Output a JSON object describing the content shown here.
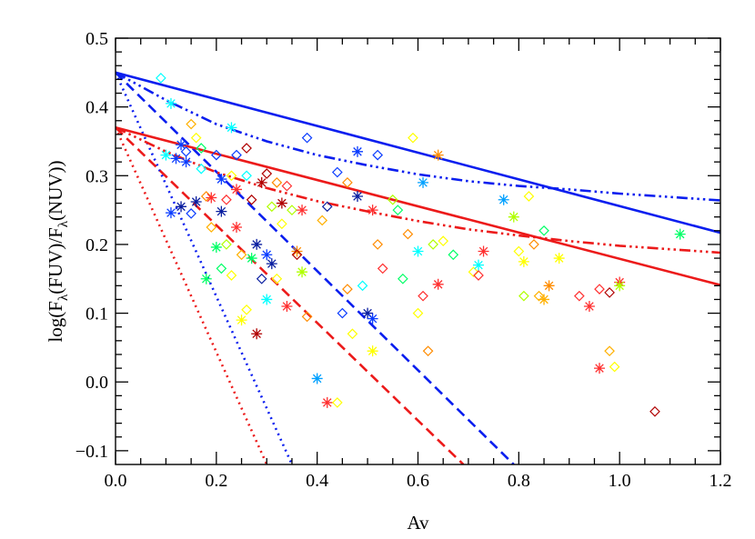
{
  "chart_data": {
    "type": "scatter",
    "xlabel": "Av",
    "ylabel": "log(Fλ(FUV)/Fλ(NUV))",
    "ylabel_parts": [
      "log(F",
      "λ",
      "(FUV)/F",
      "λ",
      "(NUV))"
    ],
    "xlim": [
      0.0,
      1.2
    ],
    "ylim": [
      -0.12,
      0.5
    ],
    "xticks": [
      0.0,
      0.2,
      0.4,
      0.6,
      0.8,
      1.0,
      1.2
    ],
    "xtick_labels": [
      "0.0",
      "0.2",
      "0.4",
      "0.6",
      "0.8",
      "1.0",
      "1.2"
    ],
    "yticks": [
      -0.1,
      0.0,
      0.1,
      0.2,
      0.3,
      0.4,
      0.5
    ],
    "ytick_labels": [
      "−0.1",
      "0.0",
      "0.1",
      "0.2",
      "0.3",
      "0.4",
      "0.5"
    ],
    "grid": false,
    "colors": {
      "blue": "#0a1eef",
      "red": "#ec1a1a"
    },
    "lines": [
      {
        "color": "blue",
        "style": "solid",
        "x": [
          0.0,
          1.2
        ],
        "y": [
          0.45,
          0.217
        ]
      },
      {
        "color": "blue",
        "style": "dashdotdot",
        "x": [
          0.0,
          0.1,
          0.2,
          0.3,
          0.4,
          0.5,
          0.6,
          0.7,
          0.8,
          0.9,
          1.0,
          1.1,
          1.2
        ],
        "y": [
          0.45,
          0.41,
          0.375,
          0.35,
          0.33,
          0.315,
          0.302,
          0.292,
          0.285,
          0.28,
          0.274,
          0.269,
          0.264
        ]
      },
      {
        "color": "blue",
        "style": "dashed",
        "x": [
          0.0,
          0.79
        ],
        "y": [
          0.45,
          -0.12
        ]
      },
      {
        "color": "blue",
        "style": "dotted",
        "x": [
          0.0,
          0.35
        ],
        "y": [
          0.45,
          -0.12
        ]
      },
      {
        "color": "red",
        "style": "solid",
        "x": [
          0.0,
          1.2
        ],
        "y": [
          0.37,
          0.141
        ]
      },
      {
        "color": "red",
        "style": "dashdotdot",
        "x": [
          0.0,
          0.1,
          0.2,
          0.3,
          0.4,
          0.5,
          0.6,
          0.7,
          0.8,
          0.9,
          1.0,
          1.1,
          1.2
        ],
        "y": [
          0.37,
          0.335,
          0.305,
          0.282,
          0.263,
          0.248,
          0.234,
          0.222,
          0.213,
          0.205,
          0.198,
          0.193,
          0.188
        ]
      },
      {
        "color": "red",
        "style": "dashed",
        "x": [
          0.0,
          0.69
        ],
        "y": [
          0.37,
          -0.12
        ]
      },
      {
        "color": "red",
        "style": "dotted",
        "x": [
          0.0,
          0.3
        ],
        "y": [
          0.37,
          -0.12
        ]
      }
    ],
    "points": [
      {
        "x": 0.09,
        "y": 0.442,
        "m": "d",
        "c": "#00ffff"
      },
      {
        "x": 0.1,
        "y": 0.33,
        "m": "s",
        "c": "#00ffff"
      },
      {
        "x": 0.11,
        "y": 0.246,
        "m": "s",
        "c": "#0a3cff"
      },
      {
        "x": 0.11,
        "y": 0.405,
        "m": "s",
        "c": "#00ffff"
      },
      {
        "x": 0.12,
        "y": 0.325,
        "m": "s",
        "c": "#0a3cff"
      },
      {
        "x": 0.13,
        "y": 0.345,
        "m": "s",
        "c": "#0a3cff"
      },
      {
        "x": 0.13,
        "y": 0.255,
        "m": "s",
        "c": "#0a1ea0"
      },
      {
        "x": 0.14,
        "y": 0.32,
        "m": "s",
        "c": "#0a3cff"
      },
      {
        "x": 0.14,
        "y": 0.335,
        "m": "d",
        "c": "#0a3cff"
      },
      {
        "x": 0.15,
        "y": 0.245,
        "m": "d",
        "c": "#0a3cff"
      },
      {
        "x": 0.15,
        "y": 0.375,
        "m": "d",
        "c": "#ffb000"
      },
      {
        "x": 0.16,
        "y": 0.355,
        "m": "d",
        "c": "#ffff00"
      },
      {
        "x": 0.16,
        "y": 0.262,
        "m": "s",
        "c": "#0a1ea0"
      },
      {
        "x": 0.17,
        "y": 0.34,
        "m": "d",
        "c": "#00ff66"
      },
      {
        "x": 0.17,
        "y": 0.31,
        "m": "d",
        "c": "#00ffff"
      },
      {
        "x": 0.18,
        "y": 0.27,
        "m": "d",
        "c": "#ff8c00"
      },
      {
        "x": 0.18,
        "y": 0.15,
        "m": "s",
        "c": "#00ff66"
      },
      {
        "x": 0.19,
        "y": 0.268,
        "m": "s",
        "c": "#ff3030"
      },
      {
        "x": 0.19,
        "y": 0.225,
        "m": "d",
        "c": "#ffb000"
      },
      {
        "x": 0.2,
        "y": 0.33,
        "m": "d",
        "c": "#0a3cff"
      },
      {
        "x": 0.2,
        "y": 0.196,
        "m": "s",
        "c": "#00ff66"
      },
      {
        "x": 0.21,
        "y": 0.295,
        "m": "s",
        "c": "#0a3cff"
      },
      {
        "x": 0.21,
        "y": 0.248,
        "m": "s",
        "c": "#0a1ea0"
      },
      {
        "x": 0.21,
        "y": 0.165,
        "m": "d",
        "c": "#00ff66"
      },
      {
        "x": 0.22,
        "y": 0.265,
        "m": "d",
        "c": "#ff3030"
      },
      {
        "x": 0.22,
        "y": 0.2,
        "m": "d",
        "c": "#b0ff00"
      },
      {
        "x": 0.23,
        "y": 0.37,
        "m": "s",
        "c": "#00ffff"
      },
      {
        "x": 0.23,
        "y": 0.3,
        "m": "d",
        "c": "#ffff00"
      },
      {
        "x": 0.23,
        "y": 0.155,
        "m": "d",
        "c": "#ffff00"
      },
      {
        "x": 0.24,
        "y": 0.33,
        "m": "d",
        "c": "#0a3cff"
      },
      {
        "x": 0.24,
        "y": 0.28,
        "m": "s",
        "c": "#ff3030"
      },
      {
        "x": 0.24,
        "y": 0.225,
        "m": "s",
        "c": "#ff3030"
      },
      {
        "x": 0.25,
        "y": 0.185,
        "m": "d",
        "c": "#ffb000"
      },
      {
        "x": 0.25,
        "y": 0.09,
        "m": "s",
        "c": "#ffff00"
      },
      {
        "x": 0.26,
        "y": 0.34,
        "m": "d",
        "c": "#b00000"
      },
      {
        "x": 0.26,
        "y": 0.3,
        "m": "d",
        "c": "#00ffff"
      },
      {
        "x": 0.26,
        "y": 0.105,
        "m": "d",
        "c": "#ffff00"
      },
      {
        "x": 0.27,
        "y": 0.265,
        "m": "d",
        "c": "#b00000"
      },
      {
        "x": 0.27,
        "y": 0.18,
        "m": "s",
        "c": "#00ff66"
      },
      {
        "x": 0.28,
        "y": 0.2,
        "m": "s",
        "c": "#0a1ea0"
      },
      {
        "x": 0.28,
        "y": 0.07,
        "m": "s",
        "c": "#b00000"
      },
      {
        "x": 0.29,
        "y": 0.29,
        "m": "s",
        "c": "#b00000"
      },
      {
        "x": 0.29,
        "y": 0.15,
        "m": "d",
        "c": "#0a1ea0"
      },
      {
        "x": 0.3,
        "y": 0.303,
        "m": "d",
        "c": "#b00000"
      },
      {
        "x": 0.3,
        "y": 0.185,
        "m": "s",
        "c": "#0a3cff"
      },
      {
        "x": 0.3,
        "y": 0.12,
        "m": "s",
        "c": "#00ffff"
      },
      {
        "x": 0.31,
        "y": 0.255,
        "m": "d",
        "c": "#b0ff00"
      },
      {
        "x": 0.31,
        "y": 0.172,
        "m": "s",
        "c": "#0a1ea0"
      },
      {
        "x": 0.32,
        "y": 0.29,
        "m": "d",
        "c": "#ff8c00"
      },
      {
        "x": 0.32,
        "y": 0.15,
        "m": "d",
        "c": "#ffff00"
      },
      {
        "x": 0.33,
        "y": 0.26,
        "m": "s",
        "c": "#b00000"
      },
      {
        "x": 0.33,
        "y": 0.23,
        "m": "d",
        "c": "#ffff00"
      },
      {
        "x": 0.34,
        "y": 0.285,
        "m": "d",
        "c": "#ff3030"
      },
      {
        "x": 0.34,
        "y": 0.11,
        "m": "s",
        "c": "#ff3030"
      },
      {
        "x": 0.35,
        "y": 0.25,
        "m": "d",
        "c": "#b0ff00"
      },
      {
        "x": 0.36,
        "y": 0.19,
        "m": "s",
        "c": "#ff8c00"
      },
      {
        "x": 0.36,
        "y": 0.185,
        "m": "d",
        "c": "#b00000"
      },
      {
        "x": 0.37,
        "y": 0.16,
        "m": "s",
        "c": "#b0ff00"
      },
      {
        "x": 0.37,
        "y": 0.25,
        "m": "s",
        "c": "#ff3030"
      },
      {
        "x": 0.38,
        "y": 0.355,
        "m": "d",
        "c": "#0a3cff"
      },
      {
        "x": 0.38,
        "y": 0.095,
        "m": "d",
        "c": "#ff8c00"
      },
      {
        "x": 0.4,
        "y": 0.005,
        "m": "s",
        "c": "#00a0ff"
      },
      {
        "x": 0.41,
        "y": 0.235,
        "m": "d",
        "c": "#ffb000"
      },
      {
        "x": 0.42,
        "y": -0.03,
        "m": "s",
        "c": "#ff3030"
      },
      {
        "x": 0.42,
        "y": 0.255,
        "m": "d",
        "c": "#0a1ea0"
      },
      {
        "x": 0.44,
        "y": 0.305,
        "m": "d",
        "c": "#0a3cff"
      },
      {
        "x": 0.44,
        "y": -0.03,
        "m": "d",
        "c": "#ffff00"
      },
      {
        "x": 0.45,
        "y": 0.1,
        "m": "d",
        "c": "#0a3cff"
      },
      {
        "x": 0.46,
        "y": 0.29,
        "m": "d",
        "c": "#ff8c00"
      },
      {
        "x": 0.46,
        "y": 0.135,
        "m": "d",
        "c": "#ff8c00"
      },
      {
        "x": 0.47,
        "y": 0.07,
        "m": "d",
        "c": "#ffff00"
      },
      {
        "x": 0.48,
        "y": 0.27,
        "m": "s",
        "c": "#0a1ea0"
      },
      {
        "x": 0.48,
        "y": 0.335,
        "m": "s",
        "c": "#0a3cff"
      },
      {
        "x": 0.49,
        "y": 0.14,
        "m": "d",
        "c": "#00ffff"
      },
      {
        "x": 0.5,
        "y": 0.1,
        "m": "s",
        "c": "#0a1ea0"
      },
      {
        "x": 0.51,
        "y": 0.045,
        "m": "s",
        "c": "#ffff00"
      },
      {
        "x": 0.51,
        "y": 0.092,
        "m": "s",
        "c": "#0a3cff"
      },
      {
        "x": 0.51,
        "y": 0.25,
        "m": "s",
        "c": "#ff3030"
      },
      {
        "x": 0.52,
        "y": 0.33,
        "m": "d",
        "c": "#0a3cff"
      },
      {
        "x": 0.52,
        "y": 0.2,
        "m": "d",
        "c": "#ff8c00"
      },
      {
        "x": 0.53,
        "y": 0.165,
        "m": "d",
        "c": "#ff3030"
      },
      {
        "x": 0.55,
        "y": 0.265,
        "m": "d",
        "c": "#b0ff00"
      },
      {
        "x": 0.56,
        "y": 0.25,
        "m": "d",
        "c": "#00ff66"
      },
      {
        "x": 0.57,
        "y": 0.15,
        "m": "d",
        "c": "#00ff66"
      },
      {
        "x": 0.58,
        "y": 0.215,
        "m": "d",
        "c": "#ff8c00"
      },
      {
        "x": 0.59,
        "y": 0.355,
        "m": "d",
        "c": "#ffff00"
      },
      {
        "x": 0.6,
        "y": 0.19,
        "m": "s",
        "c": "#00ffff"
      },
      {
        "x": 0.6,
        "y": 0.1,
        "m": "d",
        "c": "#ffff00"
      },
      {
        "x": 0.61,
        "y": 0.29,
        "m": "s",
        "c": "#00a0ff"
      },
      {
        "x": 0.61,
        "y": 0.125,
        "m": "d",
        "c": "#ff3030"
      },
      {
        "x": 0.62,
        "y": 0.045,
        "m": "d",
        "c": "#ff8c00"
      },
      {
        "x": 0.63,
        "y": 0.2,
        "m": "d",
        "c": "#b0ff00"
      },
      {
        "x": 0.64,
        "y": 0.33,
        "m": "s",
        "c": "#ff8c00"
      },
      {
        "x": 0.64,
        "y": 0.142,
        "m": "s",
        "c": "#ff3030"
      },
      {
        "x": 0.65,
        "y": 0.205,
        "m": "d",
        "c": "#ffff00"
      },
      {
        "x": 0.67,
        "y": 0.185,
        "m": "d",
        "c": "#00ff66"
      },
      {
        "x": 0.71,
        "y": 0.16,
        "m": "d",
        "c": "#ffff00"
      },
      {
        "x": 0.72,
        "y": 0.17,
        "m": "s",
        "c": "#00ffff"
      },
      {
        "x": 0.72,
        "y": 0.155,
        "m": "d",
        "c": "#ff3030"
      },
      {
        "x": 0.73,
        "y": 0.19,
        "m": "s",
        "c": "#ff3030"
      },
      {
        "x": 0.77,
        "y": 0.265,
        "m": "s",
        "c": "#00a0ff"
      },
      {
        "x": 0.79,
        "y": 0.24,
        "m": "s",
        "c": "#b0ff00"
      },
      {
        "x": 0.8,
        "y": 0.19,
        "m": "d",
        "c": "#ffff00"
      },
      {
        "x": 0.81,
        "y": 0.175,
        "m": "s",
        "c": "#ffff00"
      },
      {
        "x": 0.81,
        "y": 0.125,
        "m": "d",
        "c": "#b0ff00"
      },
      {
        "x": 0.82,
        "y": 0.27,
        "m": "d",
        "c": "#ffff00"
      },
      {
        "x": 0.83,
        "y": 0.2,
        "m": "d",
        "c": "#ff8c00"
      },
      {
        "x": 0.84,
        "y": 0.125,
        "m": "d",
        "c": "#ffb000"
      },
      {
        "x": 0.85,
        "y": 0.22,
        "m": "d",
        "c": "#00ff66"
      },
      {
        "x": 0.85,
        "y": 0.12,
        "m": "s",
        "c": "#ffb000"
      },
      {
        "x": 0.86,
        "y": 0.14,
        "m": "s",
        "c": "#ff8c00"
      },
      {
        "x": 0.88,
        "y": 0.18,
        "m": "s",
        "c": "#ffff00"
      },
      {
        "x": 0.92,
        "y": 0.125,
        "m": "d",
        "c": "#ff3030"
      },
      {
        "x": 0.94,
        "y": 0.11,
        "m": "s",
        "c": "#ff3030"
      },
      {
        "x": 0.96,
        "y": 0.135,
        "m": "d",
        "c": "#ff3030"
      },
      {
        "x": 0.96,
        "y": 0.02,
        "m": "s",
        "c": "#ff3030"
      },
      {
        "x": 0.98,
        "y": 0.13,
        "m": "d",
        "c": "#b00000"
      },
      {
        "x": 0.98,
        "y": 0.045,
        "m": "d",
        "c": "#ffb000"
      },
      {
        "x": 0.99,
        "y": 0.022,
        "m": "d",
        "c": "#ffff00"
      },
      {
        "x": 1.0,
        "y": 0.145,
        "m": "s",
        "c": "#ff3030"
      },
      {
        "x": 1.0,
        "y": 0.14,
        "m": "s",
        "c": "#b0ff00"
      },
      {
        "x": 1.07,
        "y": -0.043,
        "m": "d",
        "c": "#b00000"
      },
      {
        "x": 1.12,
        "y": 0.215,
        "m": "s",
        "c": "#00ff66"
      }
    ]
  }
}
